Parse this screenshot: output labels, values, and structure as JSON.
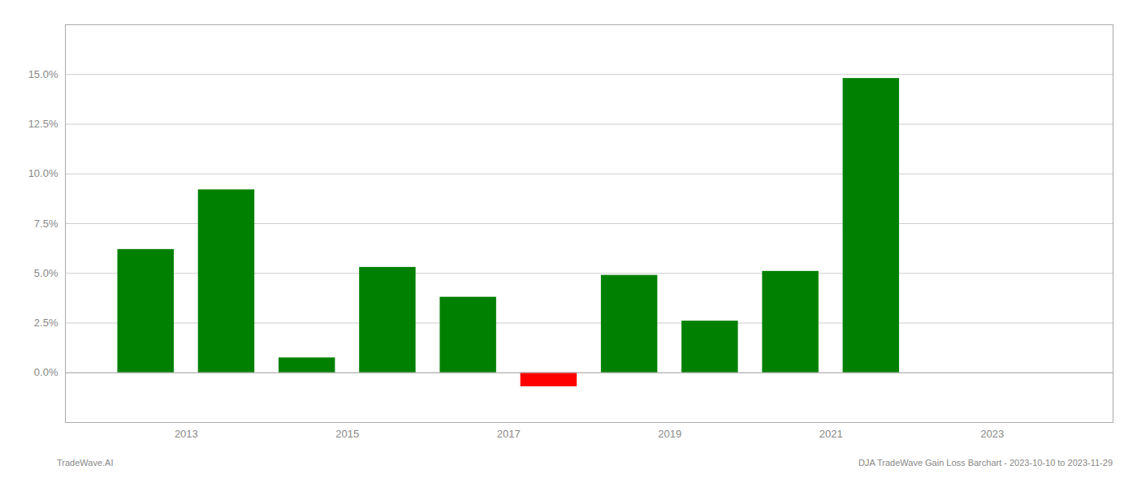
{
  "chart_data": {
    "type": "bar",
    "x": [
      2012.5,
      2013.5,
      2014.5,
      2015.5,
      2016.5,
      2017.5,
      2018.5,
      2019.5,
      2020.5,
      2021.5
    ],
    "values": [
      0.062,
      0.092,
      0.0075,
      0.053,
      0.038,
      -0.007,
      0.049,
      0.026,
      0.051,
      0.148
    ],
    "colors": [
      "#008000",
      "#008000",
      "#008000",
      "#008000",
      "#008000",
      "#ff0000",
      "#008000",
      "#008000",
      "#008000",
      "#008000"
    ],
    "xlim": [
      2011.5,
      2024.5
    ],
    "xticks": [
      2013,
      2015,
      2017,
      2019,
      2021,
      2023
    ],
    "ylim": [
      -0.025,
      0.175
    ],
    "yticks": [
      {
        "value": 0.0,
        "label": "0.0%"
      },
      {
        "value": 0.025,
        "label": "2.5%"
      },
      {
        "value": 0.05,
        "label": "5.0%"
      },
      {
        "value": 0.075,
        "label": "7.5%"
      },
      {
        "value": 0.1,
        "label": "10.0%"
      },
      {
        "value": 0.125,
        "label": "12.5%"
      },
      {
        "value": 0.15,
        "label": "15.0%"
      }
    ],
    "grid": true,
    "annotations": [
      "TradeWave.AI",
      "DJA TradeWave Gain Loss Barchart - 2023-10-10 to 2023-11-29"
    ]
  }
}
